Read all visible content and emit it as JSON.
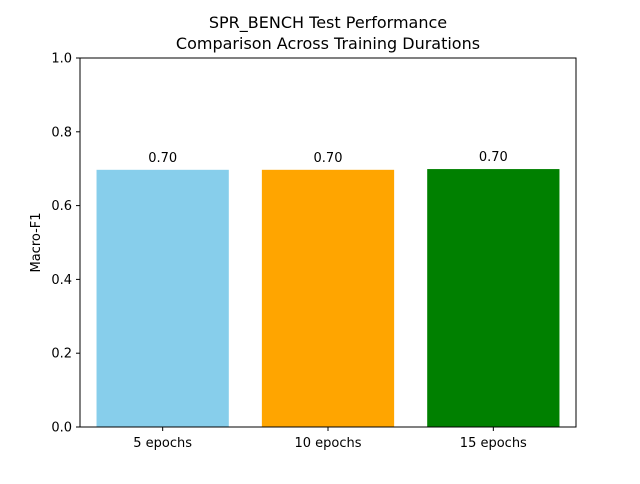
{
  "chart_data": {
    "type": "bar",
    "title_lines": [
      "SPR_BENCH Test Performance",
      "Comparison Across Training Durations"
    ],
    "xlabel": "",
    "ylabel": "Macro-F1",
    "categories": [
      "5 epochs",
      "10 epochs",
      "15 epochs"
    ],
    "values": [
      0.697,
      0.697,
      0.699
    ],
    "data_labels": [
      "0.70",
      "0.70",
      "0.70"
    ],
    "bar_colors": [
      "#87ceeb",
      "#ffa500",
      "#008000"
    ],
    "ylim": [
      0,
      1.0
    ],
    "yticks": [
      0.0,
      0.2,
      0.4,
      0.6,
      0.8,
      1.0
    ],
    "ytick_labels": [
      "0.0",
      "0.2",
      "0.4",
      "0.6",
      "0.8",
      "1.0"
    ],
    "grid": false,
    "legend": "none"
  }
}
